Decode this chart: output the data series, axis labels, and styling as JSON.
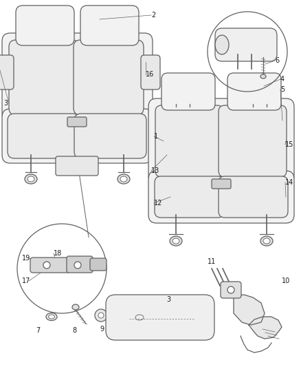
{
  "bg_color": "#ffffff",
  "line_color": "#606060",
  "lw": 0.9,
  "label_fontsize": 7,
  "figsize": [
    4.38,
    5.33
  ],
  "dpi": 100
}
